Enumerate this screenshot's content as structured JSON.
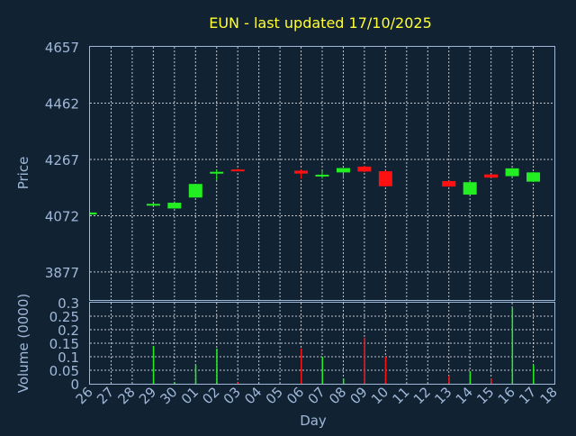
{
  "chart_data": {
    "type": "candlestick",
    "title": "EUN - last updated 17/10/2025",
    "xlabel": "Day",
    "ylabel": "Price",
    "volume_label": "Volume (0000)",
    "grid": true,
    "colors": {
      "background": "#112233",
      "up": "#22ee22",
      "down": "#ff1111",
      "title": "#ffff33",
      "axis_text": "#a0b8d8",
      "grid": "#ffffff"
    },
    "x_categories": [
      "26",
      "27",
      "28",
      "29",
      "30",
      "01",
      "02",
      "03",
      "04",
      "05",
      "06",
      "07",
      "08",
      "09",
      "10",
      "11",
      "12",
      "13",
      "14",
      "15",
      "16",
      "17",
      "18"
    ],
    "price_ticks": [
      "4657",
      "4462",
      "4267",
      "4072",
      "3877"
    ],
    "ylim": [
      3780,
      4657
    ],
    "volume_ticks": [
      "0.3",
      "0.25",
      "0.2",
      "0.15",
      "0.1",
      "0.05",
      "0"
    ],
    "volume_ylim": [
      0,
      0.3
    ],
    "candles": [
      {
        "day": "26",
        "open": 4076,
        "high": 4083,
        "low": 4076,
        "close": 4083,
        "volume": 0
      },
      {
        "day": "29",
        "open": 4110,
        "high": 4114,
        "low": 4107,
        "close": 4113,
        "volume": 0.14
      },
      {
        "day": "30",
        "open": 4097,
        "high": 4122,
        "low": 4097,
        "close": 4117,
        "volume": 0.005
      },
      {
        "day": "01",
        "open": 4135,
        "high": 4182,
        "low": 4135,
        "close": 4182,
        "volume": 0.07
      },
      {
        "day": "02",
        "open": 4219,
        "high": 4232,
        "low": 4195,
        "close": 4224,
        "volume": 0.13
      },
      {
        "day": "03",
        "open": 4232,
        "high": 4235,
        "low": 4228,
        "close": 4229,
        "volume": 0.005
      },
      {
        "day": "06",
        "open": 4228,
        "high": 4232,
        "low": 4200,
        "close": 4218,
        "volume": 0.13
      },
      {
        "day": "07",
        "open": 4208,
        "high": 4228,
        "low": 4200,
        "close": 4214,
        "volume": 0.1
      },
      {
        "day": "08",
        "open": 4222,
        "high": 4237,
        "low": 4200,
        "close": 4237,
        "volume": 0.02
      },
      {
        "day": "09",
        "open": 4242,
        "high": 4245,
        "low": 4223,
        "close": 4225,
        "volume": 0.17
      },
      {
        "day": "10",
        "open": 4226,
        "high": 4229,
        "low": 4173,
        "close": 4174,
        "volume": 0.1
      },
      {
        "day": "13",
        "open": 4192,
        "high": 4193,
        "low": 4172,
        "close": 4173,
        "volume": 0.03
      },
      {
        "day": "14",
        "open": 4145,
        "high": 4190,
        "low": 4145,
        "close": 4188,
        "volume": 0.045
      },
      {
        "day": "15",
        "open": 4215,
        "high": 4216,
        "low": 4203,
        "close": 4204,
        "volume": 0.02
      },
      {
        "day": "16",
        "open": 4209,
        "high": 4237,
        "low": 4204,
        "close": 4236,
        "volume": 0.28
      },
      {
        "day": "17",
        "open": 4190,
        "high": 4223,
        "low": 4190,
        "close": 4222,
        "volume": 0.07
      }
    ]
  }
}
